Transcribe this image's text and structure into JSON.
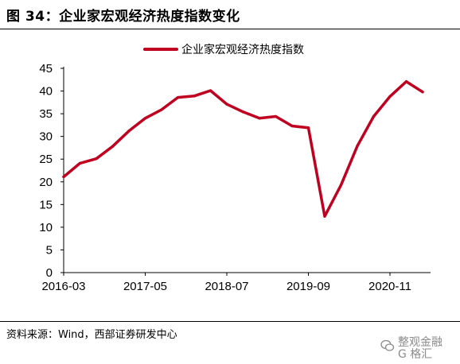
{
  "figure_title": "图 34：企业家宏观经济热度指数变化",
  "source_note": "资料来源：Wind，西部证券研发中心",
  "watermark": {
    "line1": "整观金融",
    "line2": "G 格汇",
    "icon": "wechat-icon"
  },
  "colors": {
    "series": "#c00020",
    "axis": "#000000"
  },
  "chart_data": {
    "type": "line",
    "title": "",
    "xlabel": "",
    "ylabel": "",
    "ylim": [
      0,
      45
    ],
    "yticks": [
      0,
      5,
      10,
      15,
      20,
      25,
      30,
      35,
      40,
      45
    ],
    "xtick_labels": [
      "2016-03",
      "2017-05",
      "2018-07",
      "2019-09",
      "2020-11"
    ],
    "xtick_indices": [
      0,
      5,
      10,
      15,
      20
    ],
    "legend_position": "top",
    "grid": false,
    "series": [
      {
        "name": "企业家宏观经济热度指数",
        "values": [
          21.1,
          24.1,
          25.1,
          27.8,
          31.2,
          34.0,
          35.9,
          38.6,
          38.9,
          40.1,
          37.1,
          35.4,
          34.0,
          34.4,
          32.3,
          31.9,
          12.4,
          19.3,
          27.9,
          34.4,
          38.8,
          42.1,
          39.8
        ]
      }
    ]
  }
}
